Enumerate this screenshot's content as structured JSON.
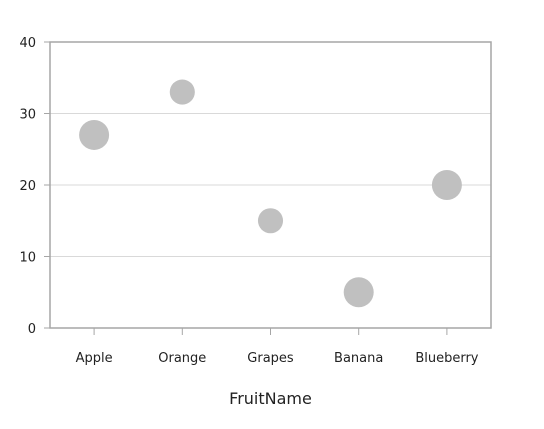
{
  "chart_data": {
    "type": "scatter",
    "subtype": "bubble",
    "title": "",
    "xlabel": "FruitName",
    "ylabel": "",
    "categories": [
      "Apple",
      "Orange",
      "Grapes",
      "Banana",
      "Blueberry"
    ],
    "values": [
      27,
      33,
      15,
      5,
      20
    ],
    "bubble_size": [
      1.0,
      0.7,
      0.7,
      1.0,
      1.0
    ],
    "ylim": [
      0,
      40
    ],
    "yticks": [
      0,
      10,
      20,
      30,
      40
    ],
    "grid": true,
    "legend": "none",
    "colors": {
      "bubble": "#c0c0c0",
      "grid": "#d9d9d9",
      "axis": "#a6a6a6",
      "text": "#222222"
    }
  }
}
